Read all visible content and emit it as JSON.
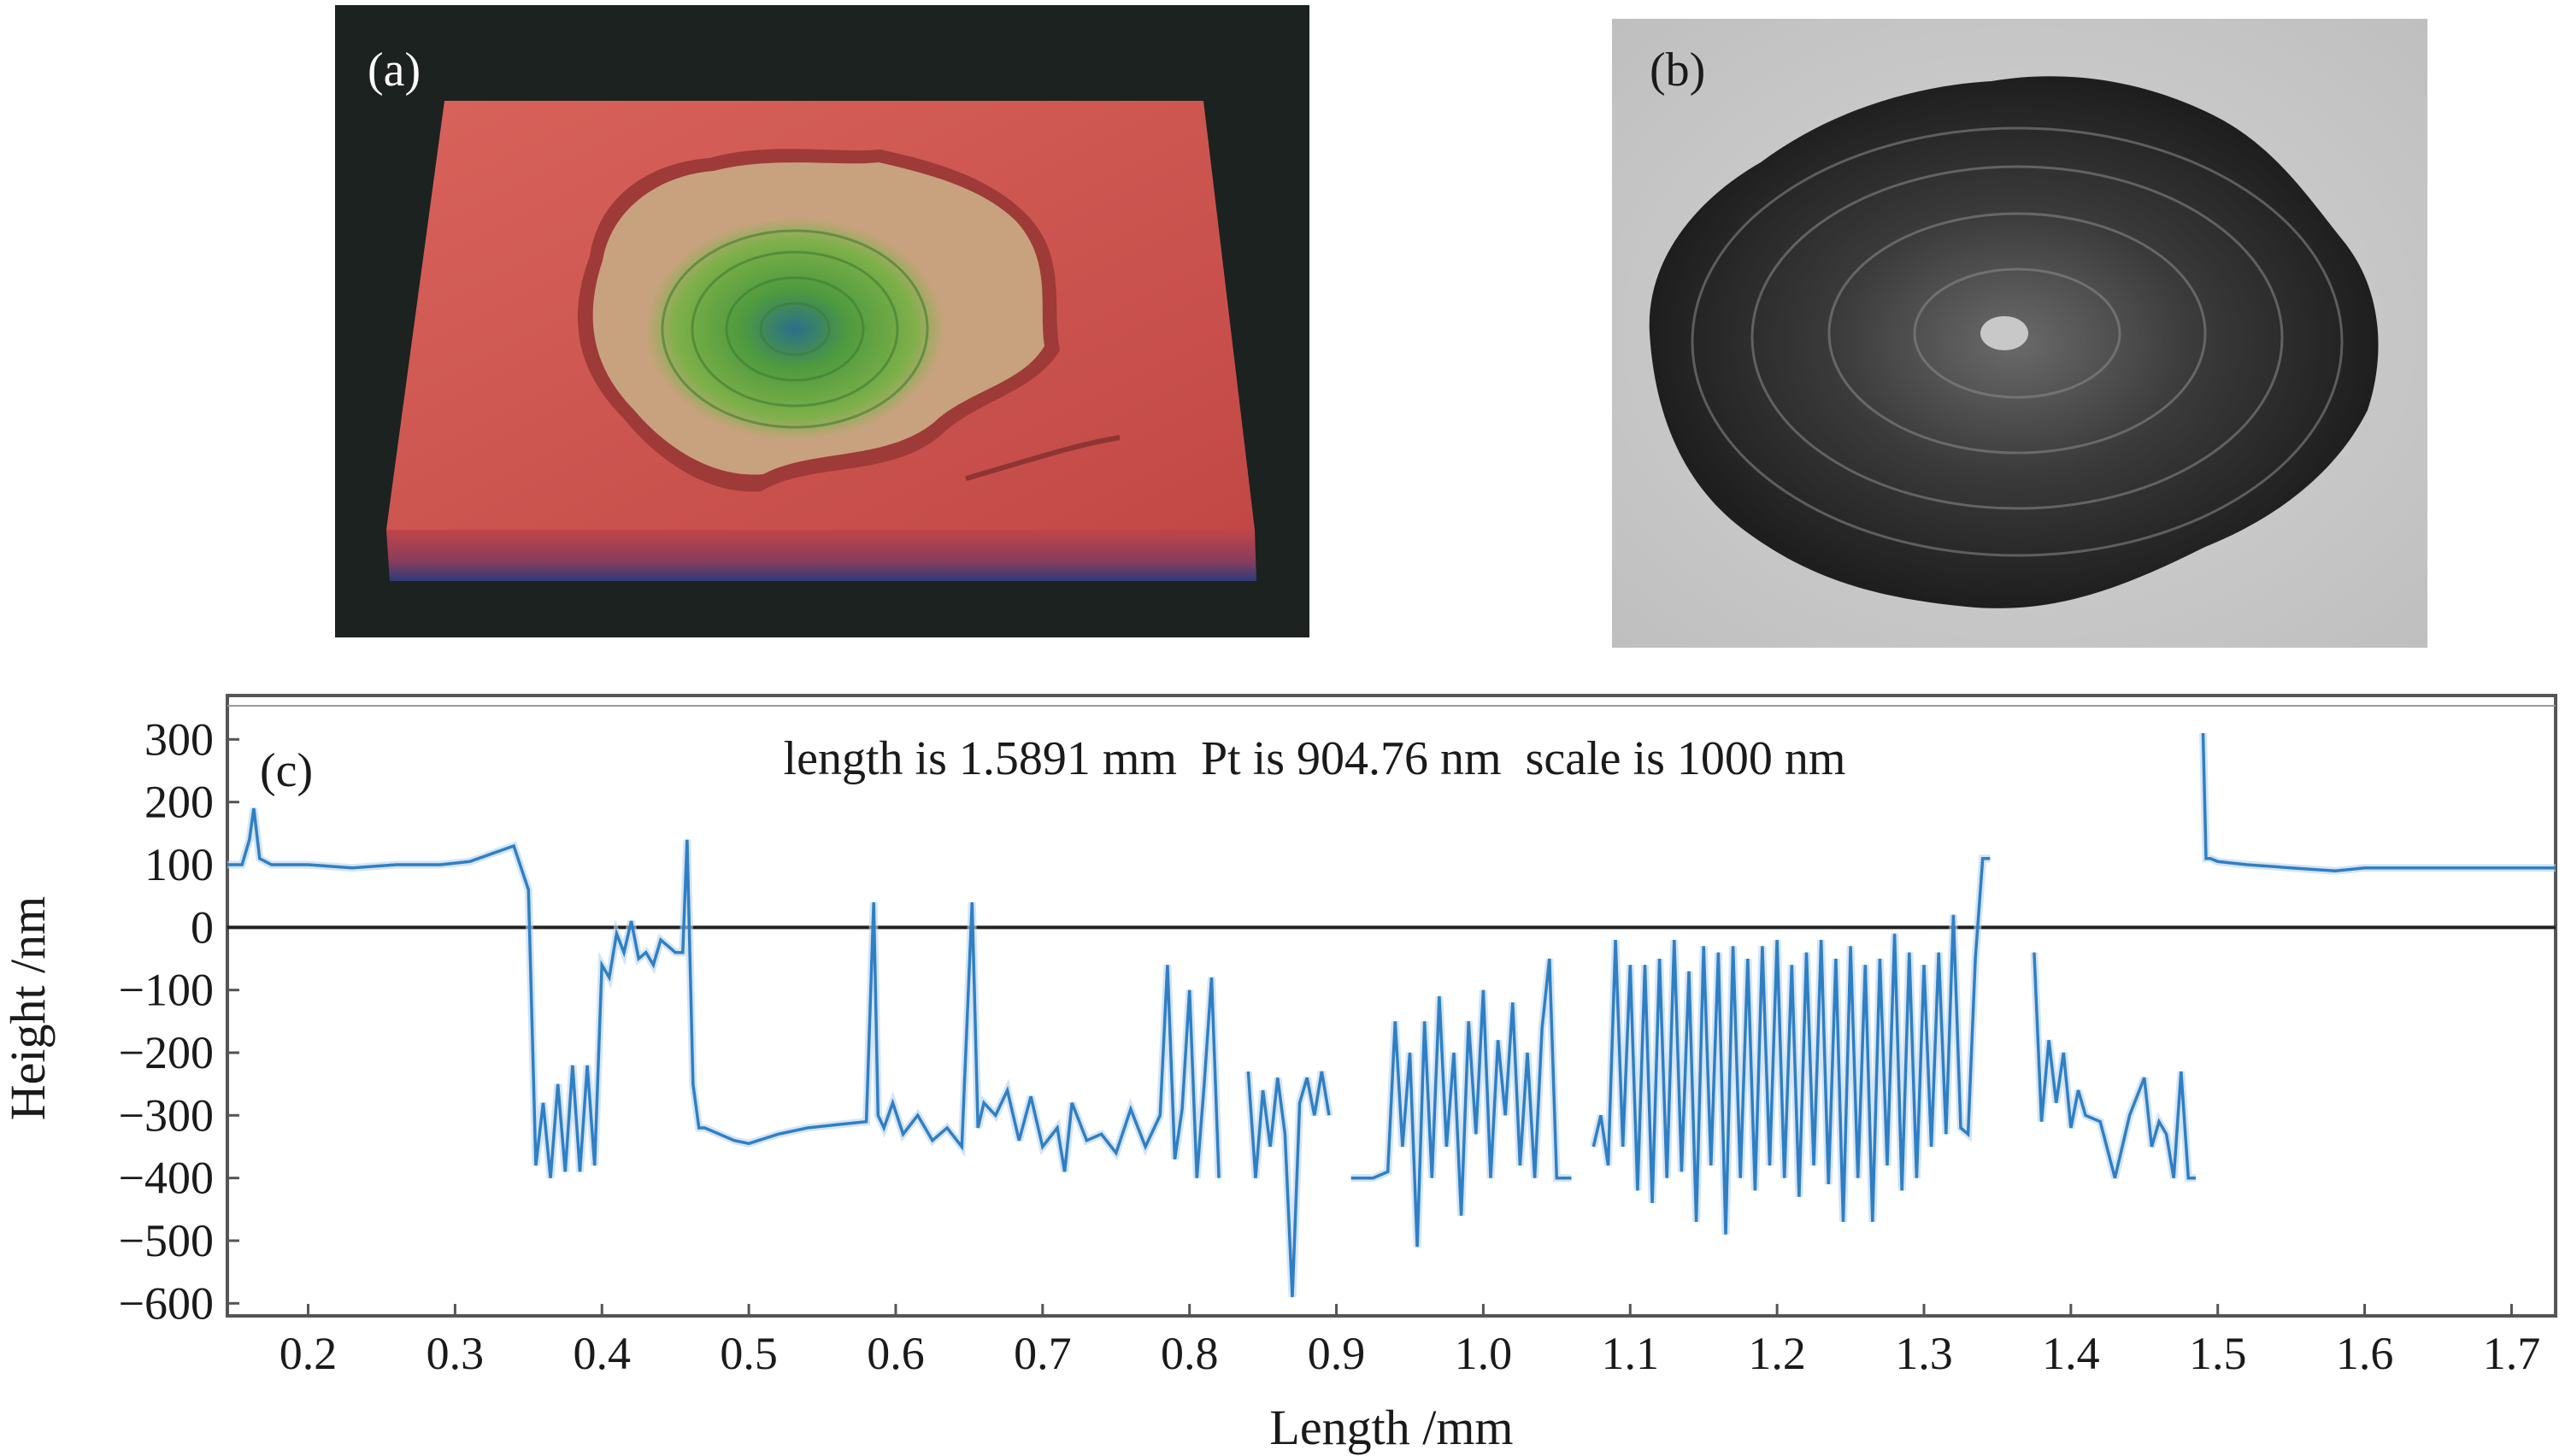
{
  "panels": {
    "a": {
      "label": "(a)"
    },
    "b": {
      "label": "(b)"
    },
    "c": {
      "label": "(c)"
    }
  },
  "colors": {
    "line": "#2f7fc4",
    "line_halo": "#b9d4ee",
    "surface_red": "#c9504c",
    "crater_beige": "#c8a27e",
    "crater_green": "#58a84a",
    "dark_background": "#1c2220"
  },
  "chart_data": {
    "type": "line",
    "title": "",
    "annotation": "length is 1.5891 mm  Pt is 904.76 nm  scale is 1000 nm",
    "xlabel": "Length /mm",
    "ylabel": "Height /nm",
    "xlim": [
      0.145,
      1.73
    ],
    "ylim": [
      -620,
      370
    ],
    "x_ticks": [
      0.2,
      0.3,
      0.4,
      0.5,
      0.6,
      0.7,
      0.8,
      0.9,
      1.0,
      1.1,
      1.2,
      1.3,
      1.4,
      1.5,
      1.6,
      1.7
    ],
    "y_ticks": [
      300,
      200,
      100,
      0,
      -100,
      -200,
      -300,
      -400,
      -500,
      -600
    ],
    "x_tick_labels": [
      "0.2",
      "0.3",
      "0.4",
      "0.5",
      "0.6",
      "0.7",
      "0.8",
      "0.9",
      "1.0",
      "1.1",
      "1.2",
      "1.3",
      "1.4",
      "1.5",
      "1.6",
      "1.7"
    ],
    "y_tick_labels": [
      "300",
      "200",
      "100",
      "0",
      "−100",
      "−200",
      "−300",
      "−400",
      "−500",
      "−600"
    ],
    "zero_line": 0,
    "grid": false,
    "segments": [
      {
        "name": "segment-1",
        "x": [
          0.145,
          0.155,
          0.16,
          0.163,
          0.167,
          0.175,
          0.2,
          0.23,
          0.26,
          0.29,
          0.31,
          0.34,
          0.35,
          0.355,
          0.36,
          0.365,
          0.37,
          0.375,
          0.38,
          0.385,
          0.39,
          0.395,
          0.4,
          0.405,
          0.41,
          0.415,
          0.42,
          0.425,
          0.43,
          0.435,
          0.44,
          0.445,
          0.45,
          0.455,
          0.458,
          0.462,
          0.466,
          0.47,
          0.48,
          0.49,
          0.5,
          0.52,
          0.54,
          0.56,
          0.58,
          0.585,
          0.588,
          0.592,
          0.598,
          0.605,
          0.615,
          0.625,
          0.635,
          0.645,
          0.652,
          0.656,
          0.66,
          0.668,
          0.676,
          0.684,
          0.692,
          0.7,
          0.71,
          0.715,
          0.72,
          0.73,
          0.74,
          0.75,
          0.76,
          0.77,
          0.78,
          0.785,
          0.79,
          0.795,
          0.8,
          0.805,
          0.81,
          0.815,
          0.82
        ],
        "y": [
          100,
          100,
          140,
          190,
          110,
          100,
          100,
          95,
          100,
          100,
          105,
          130,
          60,
          -380,
          -280,
          -400,
          -250,
          -390,
          -220,
          -390,
          -220,
          -380,
          -60,
          -80,
          -10,
          -40,
          10,
          -50,
          -40,
          -60,
          -20,
          -30,
          -40,
          -40,
          140,
          -250,
          -320,
          -320,
          -330,
          -340,
          -345,
          -330,
          -320,
          -315,
          -310,
          40,
          -300,
          -320,
          -280,
          -330,
          -300,
          -340,
          -320,
          -350,
          40,
          -320,
          -280,
          -300,
          -260,
          -340,
          -270,
          -350,
          -320,
          -390,
          -280,
          -340,
          -330,
          -360,
          -290,
          -350,
          -300,
          -60,
          -370,
          -290,
          -100,
          -400,
          -250,
          -80,
          -400
        ]
      },
      {
        "name": "segment-2",
        "x": [
          0.84,
          0.845,
          0.85,
          0.855,
          0.86,
          0.865,
          0.87,
          0.875,
          0.88,
          0.885,
          0.89,
          0.895
        ],
        "y": [
          -230,
          -400,
          -260,
          -350,
          -240,
          -330,
          -590,
          -280,
          -240,
          -300,
          -230,
          -300
        ]
      },
      {
        "name": "segment-3",
        "x": [
          0.91,
          0.925,
          0.935,
          0.94,
          0.945,
          0.95,
          0.955,
          0.96,
          0.965,
          0.97,
          0.975,
          0.98,
          0.985,
          0.99,
          0.995,
          1.0,
          1.005,
          1.01,
          1.015,
          1.02,
          1.025,
          1.03,
          1.035,
          1.04,
          1.045,
          1.05,
          1.055,
          1.06
        ],
        "y": [
          -400,
          -400,
          -390,
          -150,
          -350,
          -200,
          -510,
          -150,
          -400,
          -110,
          -350,
          -200,
          -460,
          -150,
          -330,
          -100,
          -400,
          -180,
          -300,
          -120,
          -380,
          -200,
          -400,
          -160,
          -50,
          -400,
          -400,
          -400
        ]
      },
      {
        "name": "segment-4",
        "x": [
          1.075,
          1.08,
          1.085,
          1.09,
          1.095,
          1.1,
          1.105,
          1.11,
          1.115,
          1.12,
          1.125,
          1.13,
          1.135,
          1.14,
          1.145,
          1.15,
          1.155,
          1.16,
          1.165,
          1.17,
          1.175,
          1.18,
          1.185,
          1.19,
          1.195,
          1.2,
          1.205,
          1.21,
          1.215,
          1.22,
          1.225,
          1.23,
          1.235,
          1.24,
          1.245,
          1.25,
          1.255,
          1.26,
          1.265,
          1.27,
          1.275,
          1.28,
          1.285,
          1.29,
          1.295,
          1.3,
          1.305,
          1.31,
          1.315,
          1.32,
          1.325,
          1.33,
          1.335,
          1.34,
          1.345
        ],
        "y": [
          -350,
          -300,
          -380,
          -20,
          -350,
          -60,
          -420,
          -60,
          -440,
          -50,
          -400,
          -20,
          -390,
          -70,
          -470,
          -30,
          -380,
          -40,
          -490,
          -30,
          -400,
          -50,
          -420,
          -30,
          -380,
          -20,
          -400,
          -60,
          -430,
          -40,
          -380,
          -20,
          -410,
          -50,
          -470,
          -30,
          -400,
          -60,
          -470,
          -50,
          -380,
          -10,
          -420,
          -40,
          -400,
          -60,
          -350,
          -40,
          -330,
          20,
          -320,
          -330,
          -50,
          110,
          110
        ]
      },
      {
        "name": "segment-5",
        "x": [
          1.375,
          1.38,
          1.385,
          1.39,
          1.395,
          1.4,
          1.405,
          1.41,
          1.42,
          1.43,
          1.44,
          1.45,
          1.455,
          1.46,
          1.465,
          1.47,
          1.475,
          1.48,
          1.485
        ],
        "y": [
          -40,
          -310,
          -180,
          -280,
          -200,
          -320,
          -260,
          -300,
          -310,
          -400,
          -300,
          -240,
          -350,
          -310,
          -330,
          -400,
          -230,
          -400,
          -400
        ]
      },
      {
        "name": "segment-6",
        "x": [
          1.49,
          1.492,
          1.495,
          1.5,
          1.52,
          1.55,
          1.58,
          1.6,
          1.62,
          1.66,
          1.7,
          1.73
        ],
        "y": [
          310,
          110,
          110,
          105,
          100,
          95,
          90,
          95,
          95,
          95,
          95,
          95
        ]
      }
    ]
  }
}
